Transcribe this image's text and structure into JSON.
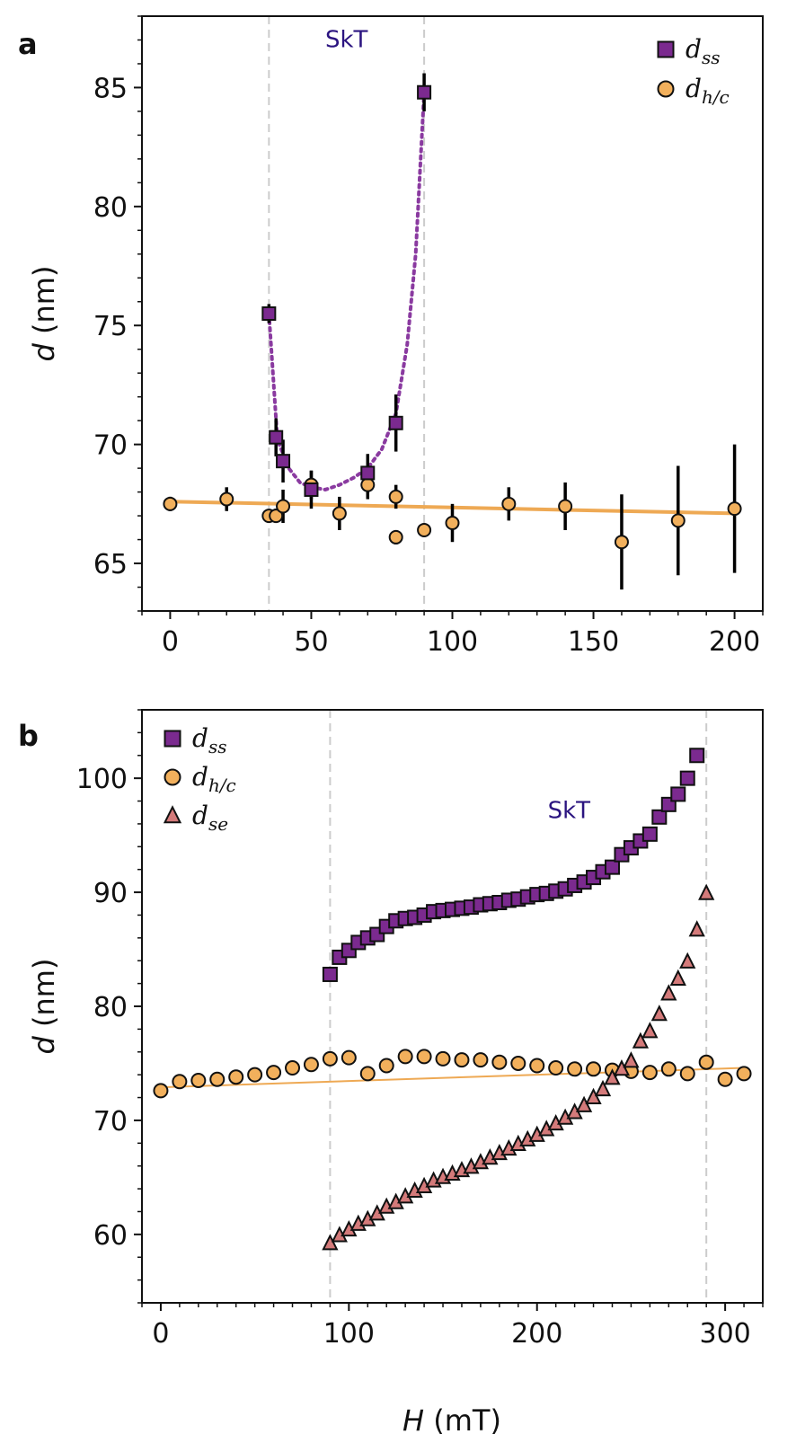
{
  "figure": {
    "colors": {
      "dss": "#7b2a8f",
      "dhc": "#f2b05c",
      "dse": "#d47a7a",
      "fit_hc": "#eea954",
      "fit_ss": "#8a3aa0",
      "region_text": "#2b1480",
      "guide": "#cccccc",
      "errorbar": "#000000"
    }
  },
  "chart_data": [
    {
      "panel": "a",
      "type": "scatter",
      "ylabel_italic": "d",
      "ylabel_unit": "(nm)",
      "xlabel_italic": "",
      "xlabel_unit": "",
      "xlim": [
        -10,
        210
      ],
      "ylim": [
        63,
        88
      ],
      "xticks": [
        0,
        50,
        100,
        150,
        200
      ],
      "yticks": [
        65,
        70,
        75,
        80,
        85
      ],
      "xticklabels": [
        "0",
        "50",
        "100",
        "150",
        "200"
      ],
      "yticklabels": [
        "65",
        "70",
        "75",
        "80",
        "85"
      ],
      "region": {
        "label": "SkT",
        "x_start": 35,
        "x_end": 90,
        "label_x": 62.5,
        "label_y": 86.7
      },
      "legend": [
        {
          "marker": "square",
          "base": "d",
          "sub": "ss"
        },
        {
          "marker": "circle",
          "base": "d",
          "sub": "h/c"
        }
      ],
      "series": [
        {
          "name": "d_ss",
          "marker": "square",
          "x": [
            35,
            37.5,
            40,
            50,
            70,
            80,
            90
          ],
          "y": [
            75.5,
            70.3,
            69.3,
            68.1,
            68.8,
            70.9,
            84.8
          ],
          "err": [
            0.4,
            0.8,
            0.9,
            0.8,
            0.8,
            1.2,
            0.8
          ]
        },
        {
          "name": "d_h/c",
          "marker": "circle",
          "x": [
            0,
            20,
            35,
            37.5,
            40,
            50,
            60,
            70,
            80,
            80,
            90,
            100,
            120,
            140,
            160,
            180,
            200
          ],
          "y": [
            67.5,
            67.7,
            67.0,
            67.0,
            67.4,
            68.3,
            67.1,
            68.3,
            67.8,
            66.1,
            66.4,
            66.7,
            67.5,
            67.4,
            65.9,
            66.8,
            67.3
          ],
          "err": [
            0.3,
            0.5,
            0.2,
            0.3,
            0.7,
            0.6,
            0.7,
            0.6,
            0.5,
            0.3,
            0.2,
            0.8,
            0.7,
            1.0,
            2.0,
            2.3,
            2.7
          ]
        }
      ],
      "fit_line_hc": {
        "x": [
          0,
          200
        ],
        "y": [
          67.6,
          67.1
        ]
      },
      "fit_curve_ss": {
        "x": [
          35,
          38,
          42,
          46,
          50,
          55,
          60,
          65,
          70,
          75,
          80,
          84,
          87,
          90
        ],
        "y": [
          75.5,
          70.2,
          69.0,
          68.4,
          68.2,
          68.1,
          68.3,
          68.6,
          69.0,
          69.8,
          71.3,
          74.2,
          78.0,
          84.8
        ]
      }
    },
    {
      "panel": "b",
      "type": "scatter",
      "ylabel_italic": "d",
      "ylabel_unit": "(nm)",
      "xlabel_italic": "H",
      "xlabel_unit": "(mT)",
      "xlim": [
        -10,
        320
      ],
      "ylim": [
        54,
        106
      ],
      "xticks": [
        0,
        100,
        200,
        300
      ],
      "yticks": [
        60,
        70,
        80,
        90,
        100
      ],
      "xticklabels": [
        "0",
        "100",
        "200",
        "300"
      ],
      "yticklabels": [
        "60",
        "70",
        "80",
        "90",
        "100"
      ],
      "region": {
        "label": "SkT",
        "x_start": 90,
        "x_end": 290,
        "label_x": 217,
        "label_y": 96.5
      },
      "legend": [
        {
          "marker": "square",
          "base": "d",
          "sub": "ss"
        },
        {
          "marker": "circle",
          "base": "d",
          "sub": "h/c"
        },
        {
          "marker": "triangle",
          "base": "d",
          "sub": "se"
        }
      ],
      "series": [
        {
          "name": "d_ss",
          "marker": "square",
          "x": [
            90,
            95,
            100,
            105,
            110,
            115,
            120,
            125,
            130,
            135,
            140,
            145,
            150,
            155,
            160,
            165,
            170,
            175,
            180,
            185,
            190,
            195,
            200,
            205,
            210,
            215,
            220,
            225,
            230,
            235,
            240,
            245,
            250,
            255,
            260,
            265,
            270,
            275,
            280,
            285
          ],
          "y": [
            82.8,
            84.3,
            84.9,
            85.6,
            86.0,
            86.3,
            87.0,
            87.5,
            87.7,
            87.8,
            88.0,
            88.3,
            88.4,
            88.5,
            88.6,
            88.7,
            88.9,
            89.0,
            89.1,
            89.3,
            89.4,
            89.6,
            89.8,
            89.9,
            90.1,
            90.3,
            90.6,
            90.9,
            91.3,
            91.8,
            92.2,
            93.3,
            93.9,
            94.5,
            95.1,
            96.6,
            97.7,
            98.6,
            100.0,
            102.0
          ],
          "err": []
        },
        {
          "name": "d_h/c",
          "marker": "circle",
          "x": [
            0,
            10,
            20,
            30,
            40,
            50,
            60,
            70,
            80,
            90,
            100,
            110,
            120,
            130,
            140,
            150,
            160,
            170,
            180,
            190,
            200,
            210,
            220,
            230,
            240,
            250,
            260,
            270,
            280,
            290,
            300,
            310
          ],
          "y": [
            72.6,
            73.4,
            73.5,
            73.6,
            73.8,
            74.0,
            74.2,
            74.6,
            74.9,
            75.4,
            75.5,
            74.1,
            74.8,
            75.6,
            75.6,
            75.4,
            75.3,
            75.3,
            75.1,
            75.0,
            74.8,
            74.6,
            74.5,
            74.5,
            74.4,
            74.3,
            74.2,
            74.5,
            74.1,
            75.1,
            73.6,
            74.1
          ],
          "err": []
        },
        {
          "name": "d_se",
          "marker": "triangle",
          "x": [
            90,
            95,
            100,
            105,
            110,
            115,
            120,
            125,
            130,
            135,
            140,
            145,
            150,
            155,
            160,
            165,
            170,
            175,
            180,
            185,
            190,
            195,
            200,
            205,
            210,
            215,
            220,
            225,
            230,
            235,
            240,
            245,
            250,
            255,
            260,
            265,
            270,
            275,
            280,
            285,
            290
          ],
          "y": [
            59.2,
            59.9,
            60.4,
            60.9,
            61.3,
            61.8,
            62.4,
            62.8,
            63.3,
            63.8,
            64.2,
            64.7,
            65.0,
            65.3,
            65.6,
            65.9,
            66.3,
            66.7,
            67.1,
            67.5,
            67.9,
            68.3,
            68.7,
            69.2,
            69.7,
            70.2,
            70.7,
            71.3,
            72.0,
            72.7,
            73.7,
            74.5,
            75.2,
            76.9,
            77.8,
            79.3,
            81.1,
            82.4,
            83.9,
            86.7,
            89.9
          ],
          "err": []
        }
      ],
      "fit_line_hc": {
        "x": [
          0,
          310
        ],
        "y": [
          72.9,
          74.6
        ]
      },
      "fit_curve_ss": null
    }
  ]
}
